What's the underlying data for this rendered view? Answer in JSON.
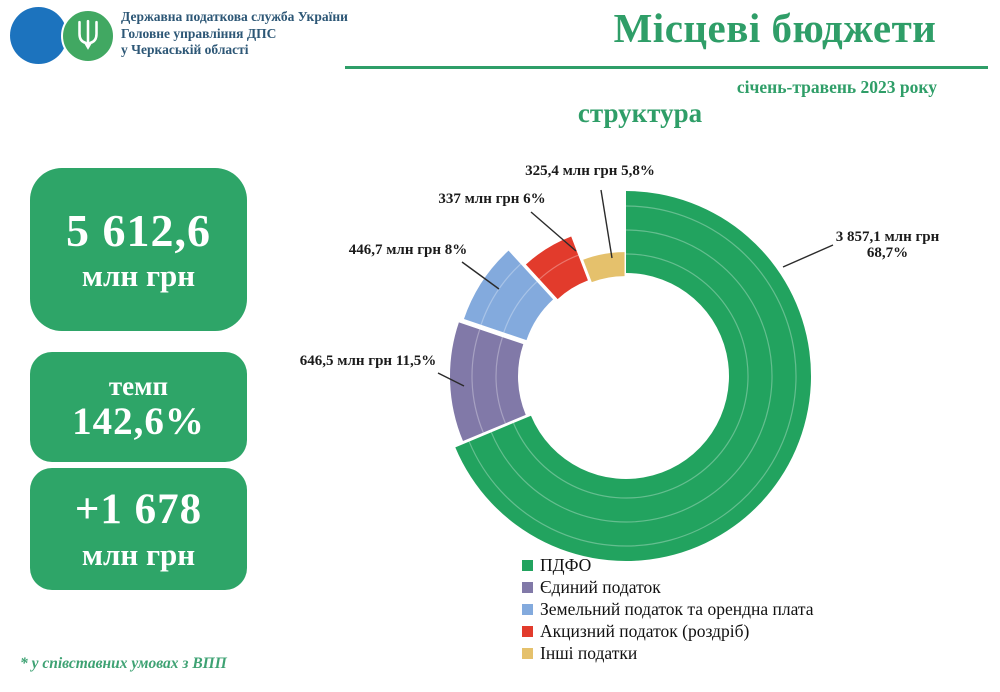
{
  "header": {
    "org_name_lines": [
      "Державна податкова служба України",
      "Головне управління ДПС",
      "у Черкаській області"
    ],
    "title": "Місцеві бюджети",
    "period": "січень-травень  2023 року",
    "subtitle": "структура"
  },
  "kpi": {
    "total": {
      "value": "5 612,6",
      "unit": "млн грн"
    },
    "tempo": {
      "label": "темп",
      "value": "142,6%"
    },
    "delta": {
      "value": "+1 678",
      "unit": "млн грн"
    }
  },
  "footnote": "* у співставних умовах з ВПП",
  "colors": {
    "accent_green": "#2f9e68",
    "box_green": "#2ea568",
    "header_text_blue": "#2d5776",
    "logo_blue": "#1c73be",
    "logo_green": "#41a862",
    "label_text": "#1b1b1b"
  },
  "chart_data": {
    "type": "pie",
    "subtype": "exploded-doughnut",
    "title": "структура",
    "period": "січень-травень 2023 року",
    "units": "млн грн",
    "total": {
      "value": 5612.6,
      "unit": "млн грн"
    },
    "legend_position": "bottom",
    "start_angle_deg": 0,
    "direction": "clockwise",
    "slices": [
      {
        "name": "ПДФО",
        "value": 3857.1,
        "pct": 68.7,
        "color": "#22a35f",
        "value_label": "3 857,1 млн грн",
        "pct_label": "68,7%"
      },
      {
        "name": "Єдиний податок",
        "value": 646.5,
        "pct": 11.5,
        "color": "#8179a8",
        "value_label": "646,5 млн грн",
        "pct_label": "11,5%"
      },
      {
        "name": "Земельний податок та  орендна плата",
        "value": 446.7,
        "pct": 8.0,
        "color": "#83aadd",
        "value_label": "446,7 млн грн",
        "pct_label": "8%"
      },
      {
        "name": "Акцизний податок (роздріб)",
        "value": 337.0,
        "pct": 6.0,
        "color": "#e23b2c",
        "value_label": "337 млн грн",
        "pct_label": "6%"
      },
      {
        "name": "Інші податки",
        "value": 325.4,
        "pct": 5.8,
        "color": "#e5c16c",
        "value_label": "325,4 млн грн",
        "pct_label": "5,8%"
      }
    ]
  }
}
